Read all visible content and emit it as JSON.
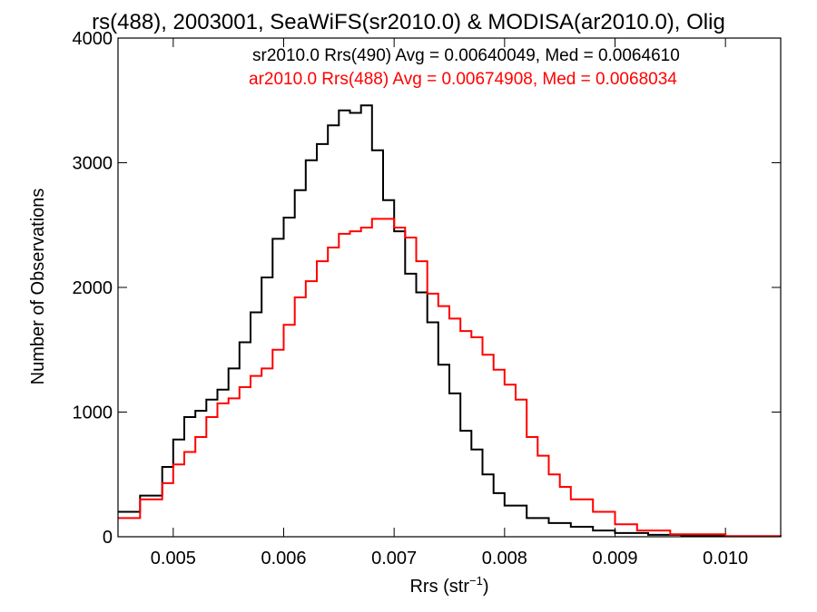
{
  "chart_data": {
    "type": "line",
    "title": "rs(488), 2003001, SeaWiFS(sr2010.0) & MODISA(ar2010.0), Olig",
    "xlabel": "Rrs (str",
    "xlabel_sup": "−1",
    "xlabel_close": ")",
    "ylabel": "Number of Observations",
    "xlim": [
      0.0045,
      0.0105
    ],
    "ylim": [
      0,
      4000
    ],
    "x_ticks": [
      0.005,
      0.006,
      0.007,
      0.008,
      0.009,
      0.01
    ],
    "x_tick_labels": [
      "0.005",
      "0.006",
      "0.007",
      "0.008",
      "0.009",
      "0.010"
    ],
    "y_ticks": [
      0,
      1000,
      2000,
      3000,
      4000
    ],
    "y_tick_labels": [
      "0",
      "1000",
      "2000",
      "3000",
      "4000"
    ],
    "grid": false,
    "legend_position": "top-right",
    "series": [
      {
        "name": "sr2010.0 Rrs(490) Avg = 0.00640049, Med = 0.0064610",
        "color": "#000000",
        "x": [
          0.0045,
          0.0047,
          0.0049,
          0.005,
          0.0051,
          0.0052,
          0.0053,
          0.0054,
          0.0055,
          0.0056,
          0.0057,
          0.0058,
          0.0059,
          0.006,
          0.0061,
          0.0062,
          0.0063,
          0.0064,
          0.0065,
          0.0066,
          0.0067,
          0.0068,
          0.0069,
          0.007,
          0.0071,
          0.0072,
          0.0073,
          0.0074,
          0.0075,
          0.0076,
          0.0077,
          0.0078,
          0.0079,
          0.008,
          0.0082,
          0.0084,
          0.0086,
          0.0088,
          0.009,
          0.0093,
          0.0096,
          0.01,
          0.0105
        ],
        "y": [
          200,
          330,
          560,
          780,
          960,
          1010,
          1100,
          1180,
          1350,
          1560,
          1800,
          2080,
          2390,
          2560,
          2780,
          3020,
          3150,
          3300,
          3420,
          3400,
          3460,
          3100,
          2700,
          2450,
          2110,
          1960,
          1720,
          1380,
          1150,
          850,
          700,
          500,
          350,
          250,
          150,
          110,
          80,
          50,
          30,
          15,
          8,
          4,
          0
        ]
      },
      {
        "name": "ar2010.0 Rrs(488) Avg = 0.00674908, Med = 0.0068034",
        "color": "#ff0000",
        "x": [
          0.0045,
          0.0047,
          0.0049,
          0.005,
          0.0051,
          0.0052,
          0.0053,
          0.0054,
          0.0055,
          0.0056,
          0.0057,
          0.0058,
          0.0059,
          0.006,
          0.0061,
          0.0062,
          0.0063,
          0.0064,
          0.0065,
          0.0066,
          0.0067,
          0.0068,
          0.0069,
          0.007,
          0.0071,
          0.0072,
          0.0073,
          0.0074,
          0.0075,
          0.0076,
          0.0077,
          0.0078,
          0.0079,
          0.008,
          0.0081,
          0.0082,
          0.0083,
          0.0084,
          0.0085,
          0.0086,
          0.0088,
          0.009,
          0.0092,
          0.0095,
          0.01,
          0.0105
        ],
        "y": [
          150,
          300,
          430,
          580,
          680,
          800,
          960,
          1070,
          1110,
          1200,
          1290,
          1350,
          1500,
          1700,
          1920,
          2050,
          2210,
          2320,
          2430,
          2450,
          2480,
          2550,
          2550,
          2480,
          2400,
          2210,
          1950,
          1850,
          1750,
          1650,
          1600,
          1460,
          1340,
          1220,
          1100,
          800,
          650,
          500,
          400,
          300,
          200,
          100,
          50,
          20,
          5,
          0
        ]
      }
    ]
  }
}
